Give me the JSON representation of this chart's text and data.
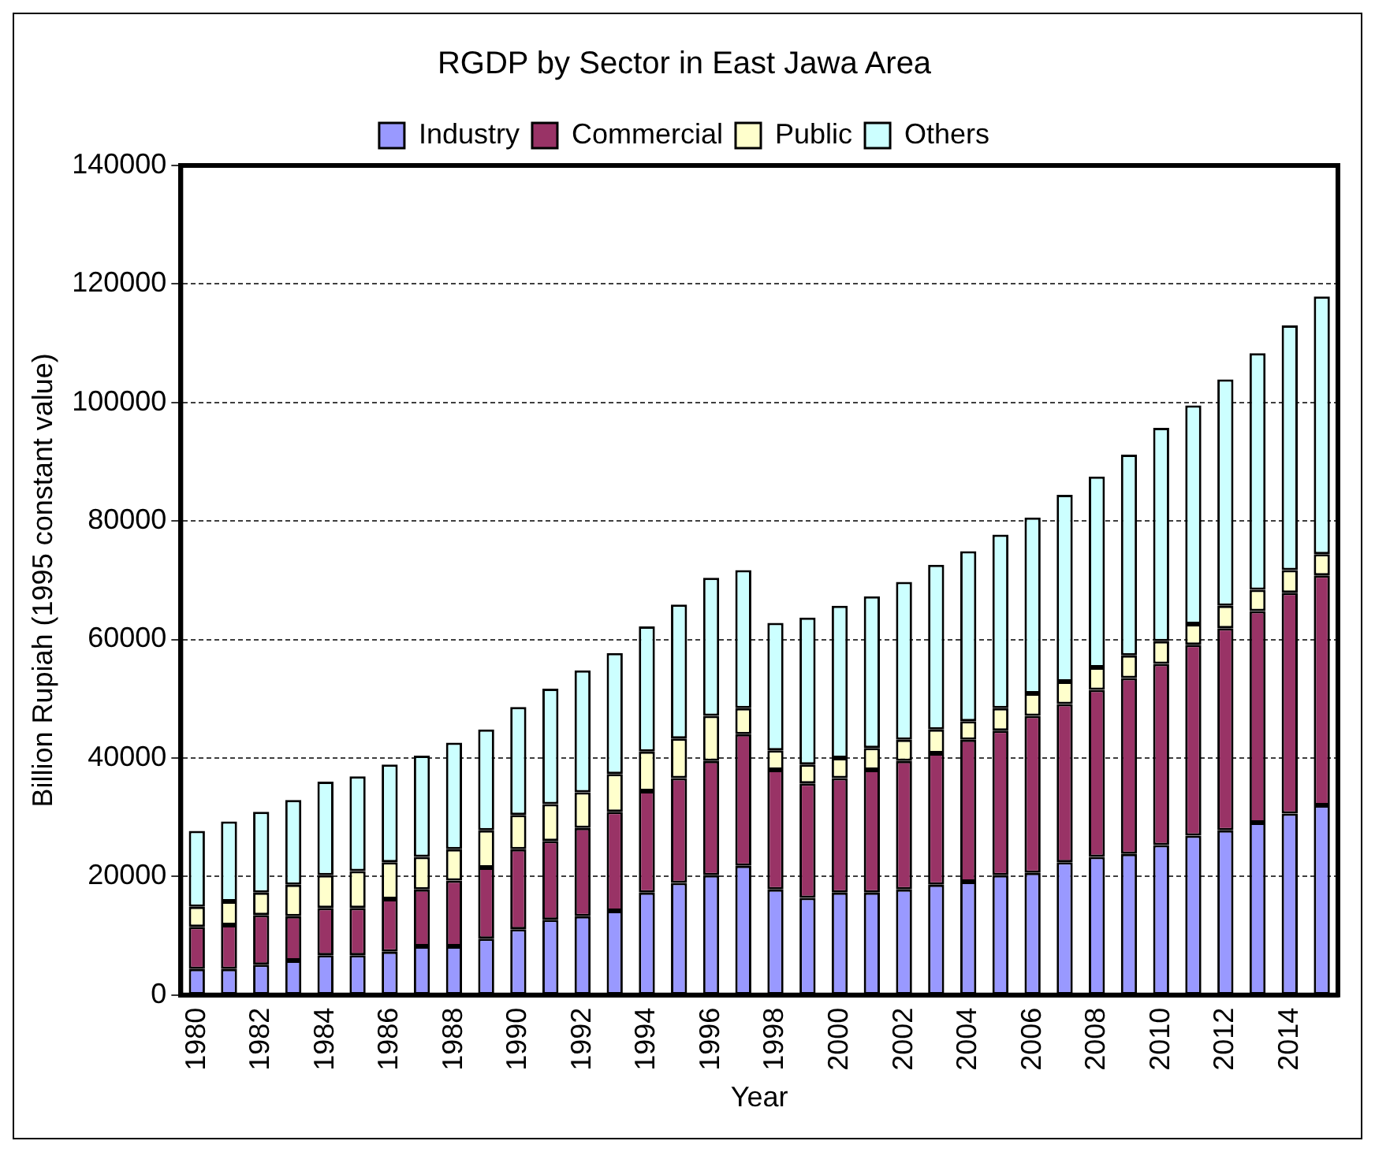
{
  "chart_data": {
    "type": "bar",
    "title": "RGDP by Sector in East Jawa Area",
    "xlabel": "Year",
    "ylabel": "Billion Rupiah (1995 constant value)",
    "stacked": true,
    "legend": "top",
    "grid": "y",
    "categories": [
      "1980",
      null,
      "1982",
      null,
      "1984",
      null,
      "1986",
      null,
      "1988",
      null,
      "1990",
      null,
      "1992",
      null,
      "1994",
      null,
      "1996",
      null,
      "1998",
      null,
      "2000",
      null,
      "2002",
      null,
      "2004",
      null,
      "2006",
      null,
      "2008",
      null,
      "2010",
      null,
      "2012",
      null,
      "2014",
      null
    ],
    "ylim": [
      0,
      140000
    ],
    "yticks": [
      0,
      20000,
      40000,
      60000,
      80000,
      100000,
      120000,
      140000
    ],
    "series": [
      {
        "name": "Industry",
        "color": "#9999ff",
        "values": [
          4400,
          4400,
          5100,
          5800,
          6700,
          6700,
          7300,
          8200,
          8200,
          9500,
          11100,
          12700,
          13300,
          14200,
          17300,
          18900,
          20200,
          21800,
          17800,
          16400,
          17300,
          17300,
          17800,
          18600,
          19100,
          20200,
          20600,
          22400,
          23300,
          23800,
          25300,
          26900,
          27800,
          29100,
          30600,
          32000
        ]
      },
      {
        "name": "Commercial",
        "color": "#993366",
        "values": [
          7100,
          7400,
          8400,
          7500,
          8000,
          8000,
          8900,
          9600,
          11100,
          12000,
          13500,
          13300,
          14900,
          16700,
          17100,
          17700,
          19300,
          22200,
          20200,
          19300,
          19300,
          20700,
          21700,
          22200,
          24000,
          24400,
          26500,
          26700,
          28200,
          29700,
          30600,
          32200,
          34100,
          35700,
          37300,
          38800
        ]
      },
      {
        "name": "Public",
        "color": "#ffffcc",
        "values": [
          3400,
          4000,
          3800,
          5300,
          5500,
          6200,
          6200,
          5500,
          5300,
          6300,
          5800,
          6200,
          6000,
          6400,
          6700,
          6700,
          7600,
          4400,
          3300,
          3200,
          3400,
          3700,
          3600,
          4000,
          3100,
          3800,
          3800,
          3800,
          3800,
          3800,
          3800,
          3500,
          3800,
          3600,
          3800,
          3600
        ]
      },
      {
        "name": "Others",
        "color": "#ccffff",
        "values": [
          12800,
          13500,
          13600,
          14300,
          15800,
          16000,
          16500,
          17100,
          18000,
          17000,
          18200,
          19500,
          20600,
          20400,
          21100,
          22600,
          23300,
          23300,
          21500,
          24800,
          25700,
          25600,
          26600,
          27800,
          28700,
          29300,
          29700,
          31500,
          32200,
          33900,
          36000,
          36900,
          38200,
          39900,
          41300,
          43500
        ]
      }
    ]
  }
}
